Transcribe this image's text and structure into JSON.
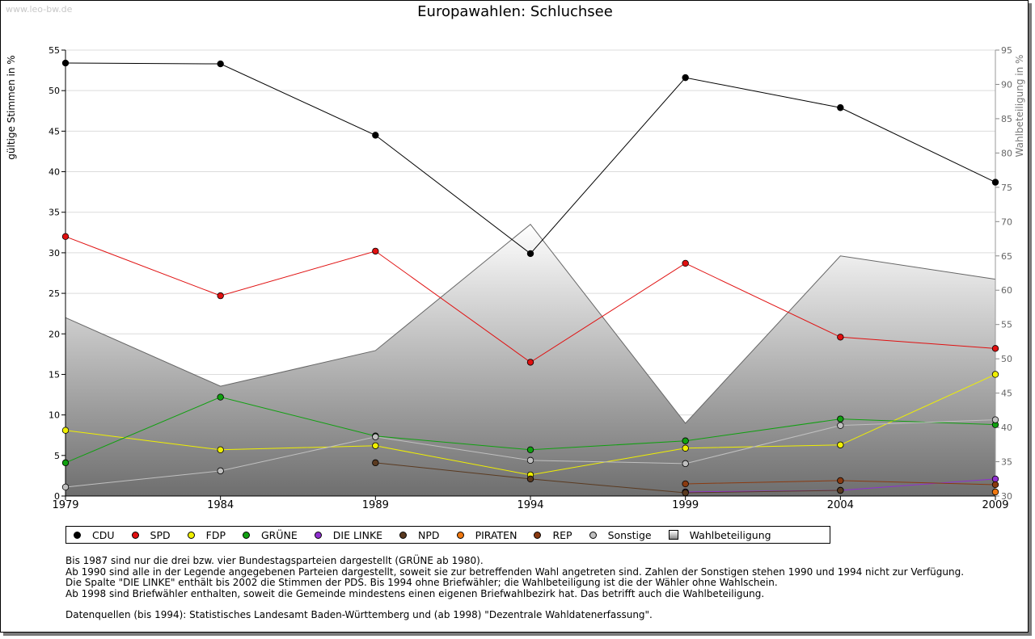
{
  "watermark": "www.leo-bw.de",
  "chart_data": {
    "type": "line",
    "title": "Europawahlen: Schluchsee",
    "ylabel": "gültige Stimmen in %",
    "y2label": "Wahlbeteiligung in %",
    "ylim": [
      0,
      55
    ],
    "y2lim": [
      30,
      95
    ],
    "yticks": [
      "0",
      "5",
      "10",
      "15",
      "20",
      "25",
      "30",
      "35",
      "40",
      "45",
      "50",
      "55"
    ],
    "y2ticks": [
      "30",
      "35",
      "40",
      "45",
      "50",
      "55",
      "60",
      "65",
      "70",
      "75",
      "80",
      "85",
      "90",
      "95"
    ],
    "categories": [
      "1979",
      "1984",
      "1989",
      "1994",
      "1999",
      "2004",
      "2009"
    ],
    "grid": true,
    "legend_position": "bottom",
    "series": [
      {
        "name": "CDU",
        "color": "#000000",
        "values": [
          53.4,
          53.3,
          44.5,
          29.9,
          51.6,
          47.9,
          38.7
        ]
      },
      {
        "name": "SPD",
        "color": "#e01010",
        "values": [
          32.0,
          24.7,
          30.2,
          16.5,
          28.7,
          19.6,
          18.2
        ]
      },
      {
        "name": "FDP",
        "color": "#f0f000",
        "values": [
          8.1,
          5.7,
          6.2,
          2.6,
          5.9,
          6.3,
          15.0
        ]
      },
      {
        "name": "GRÜNE",
        "color": "#10a010",
        "values": [
          4.1,
          12.2,
          7.4,
          5.7,
          6.8,
          9.5,
          8.8
        ]
      },
      {
        "name": "DIE LINKE",
        "color": "#9030d0",
        "values": [
          null,
          null,
          null,
          null,
          0.5,
          0.7,
          2.1
        ]
      },
      {
        "name": "NPD",
        "color": "#5a3a20",
        "values": [
          null,
          null,
          4.1,
          2.1,
          0.4,
          0.7,
          null
        ]
      },
      {
        "name": "PIRATEN",
        "color": "#f07810",
        "values": [
          null,
          null,
          null,
          null,
          null,
          null,
          0.5
        ]
      },
      {
        "name": "REP",
        "color": "#8a3a10",
        "values": [
          null,
          null,
          null,
          null,
          1.5,
          1.9,
          1.4
        ]
      },
      {
        "name": "Sonstige",
        "color": "#c0c0c0",
        "values": [
          1.1,
          3.1,
          7.3,
          4.4,
          4.0,
          8.7,
          9.4
        ]
      }
    ],
    "turnout": {
      "name": "Wahlbeteiligung",
      "axis": "right",
      "values": [
        56.0,
        46.0,
        51.2,
        69.6,
        40.6,
        65.0,
        61.6
      ]
    }
  },
  "notes": [
    "Bis 1987 sind nur die drei bzw. vier Bundestagsparteien dargestellt (GRÜNE ab 1980).",
    "Ab 1990 sind alle in der Legende angegebenen Parteien dargestellt, soweit sie zur betreffenden Wahl angetreten sind. Zahlen der Sonstigen stehen 1990 und 1994 nicht zur Verfügung.",
    "Die Spalte \"DIE LINKE\" enthält bis 2002 die Stimmen der PDS. Bis 1994 ohne Briefwähler; die Wahlbeteiligung ist die der Wähler ohne Wahlschein.",
    "Ab 1998 sind Briefwähler enthalten, soweit die Gemeinde mindestens einen eigenen Briefwahlbezirk hat. Das betrifft auch die Wahlbeteiligung."
  ],
  "source": "Datenquellen (bis 1994): Statistisches Landesamt Baden-Württemberg und (ab 1998) \"Dezentrale Wahldatenerfassung\"."
}
